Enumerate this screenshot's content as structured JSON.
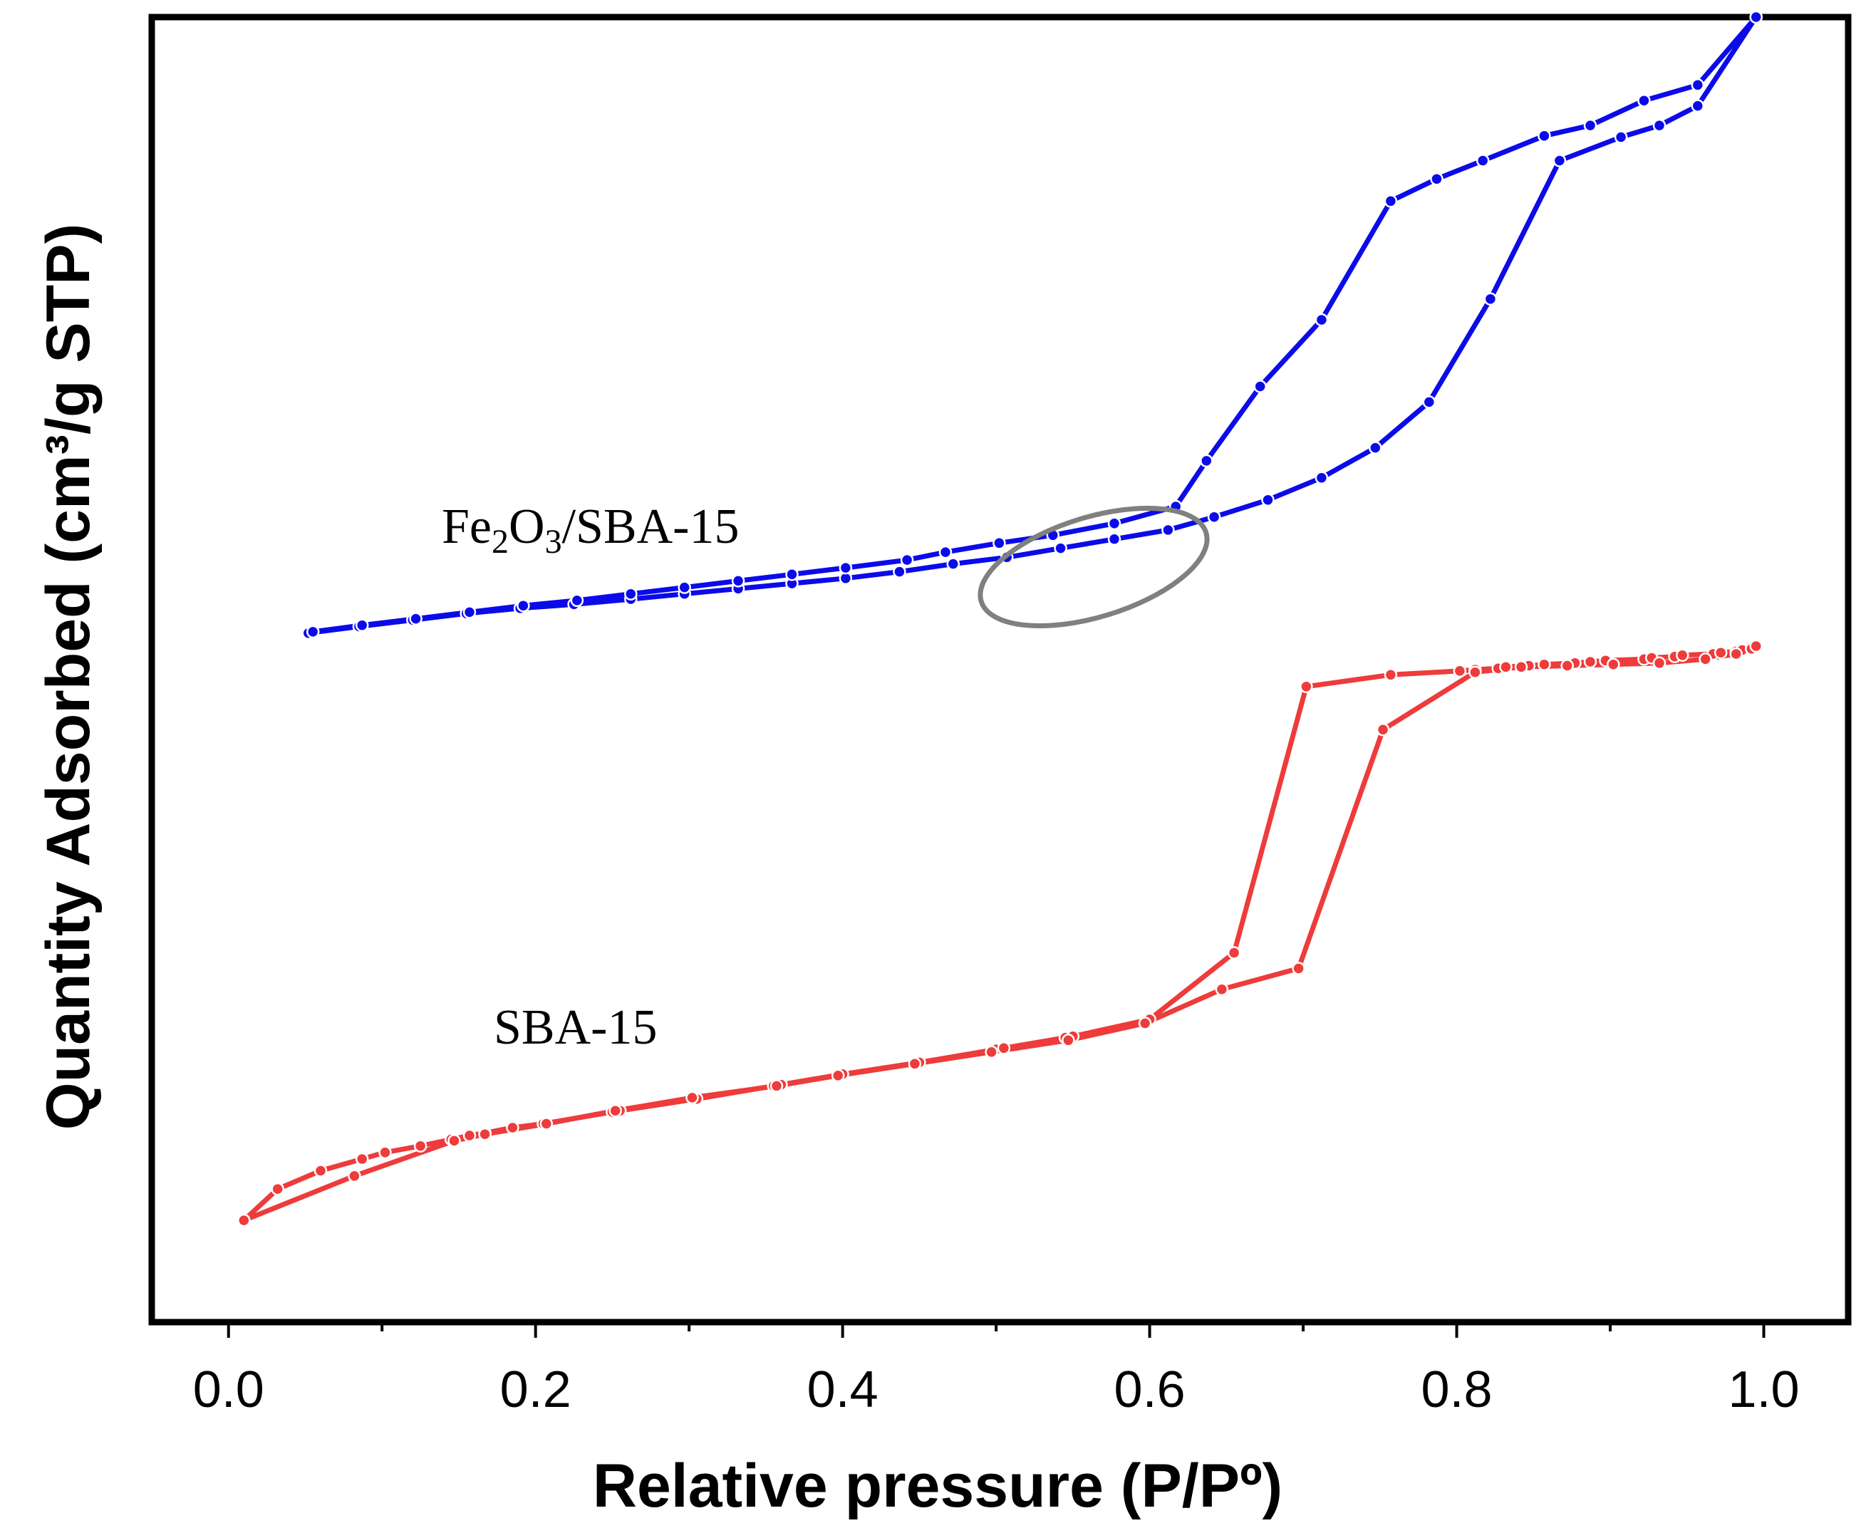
{
  "chart_data": {
    "type": "line",
    "title": "",
    "xlabel": "Relative pressure (P/Pº)",
    "ylabel": "Quantity Adsorbed (cm³/g STP)",
    "xlim": [
      -0.05,
      1.055
    ],
    "ylim": [
      0,
      1000
    ],
    "x_ticks": [
      "0.0",
      "0.2",
      "0.4",
      "0.6",
      "0.8",
      "1.0"
    ],
    "y_ticks_shown": false,
    "grid": false,
    "series": [
      {
        "name": "Fe2O3/SBA-15",
        "color": "#0b0bea",
        "adsorption": {
          "x": [
            0.052,
            0.085,
            0.12,
            0.155,
            0.19,
            0.225,
            0.262,
            0.297,
            0.332,
            0.367,
            0.402,
            0.437,
            0.472,
            0.507,
            0.542,
            0.577,
            0.612,
            0.642,
            0.677,
            0.712,
            0.747,
            0.782,
            0.822,
            0.867,
            0.907,
            0.932,
            0.957,
            0.995
          ],
          "y": [
            528,
            533,
            538,
            543,
            547,
            550,
            554,
            558,
            562,
            566,
            570,
            575,
            581,
            586,
            593,
            600,
            607,
            617,
            630,
            647,
            670,
            705,
            784,
            890,
            908,
            917,
            932,
            1000
          ]
        },
        "desorption": {
          "x": [
            0.995,
            0.957,
            0.922,
            0.887,
            0.857,
            0.817,
            0.787,
            0.757,
            0.712,
            0.672,
            0.637,
            0.617,
            0.577,
            0.537,
            0.502,
            0.467,
            0.442,
            0.402,
            0.367,
            0.332,
            0.297,
            0.262,
            0.227,
            0.192,
            0.157,
            0.122,
            0.087,
            0.055
          ],
          "y": [
            1000,
            948,
            936,
            917,
            909,
            890,
            876,
            859,
            768,
            717,
            660,
            625,
            612,
            603,
            597,
            590,
            584,
            578,
            573,
            568,
            563,
            558,
            553,
            549,
            544,
            539,
            534,
            529
          ]
        },
        "label": {
          "base": "Fe",
          "sub1": "2",
          "mid": "O",
          "sub2": "3",
          "rest": "/SBA-15"
        }
      },
      {
        "name": "SBA-15",
        "color": "#ee3b3b",
        "adsorption": {
          "x": [
            0.01,
            0.032,
            0.06,
            0.087,
            0.102,
            0.125,
            0.145,
            0.157,
            0.167,
            0.185,
            0.205,
            0.25,
            0.255,
            0.305,
            0.355,
            0.36,
            0.4,
            0.45,
            0.5,
            0.505,
            0.545,
            0.55,
            0.6,
            0.655,
            0.702,
            0.757,
            0.802,
            0.812,
            0.827,
            0.832,
            0.847,
            0.857,
            0.877,
            0.887,
            0.897,
            0.922,
            0.927,
            0.942,
            0.947,
            0.967,
            0.972,
            0.982,
            0.986,
            0.992,
            0.995
          ],
          "y": [
            78,
            102,
            116,
            125,
            130,
            135,
            140,
            143,
            145,
            149,
            152,
            161,
            162,
            171,
            181,
            182,
            190,
            199,
            209,
            210,
            218,
            219,
            232,
            283,
            487,
            496,
            499,
            500,
            501,
            502,
            503,
            504,
            505,
            506,
            507,
            508,
            509,
            510,
            511,
            512,
            513,
            514,
            515,
            516,
            518
          ]
        },
        "desorption": {
          "x": [
            0.995,
            0.982,
            0.962,
            0.932,
            0.902,
            0.872,
            0.842,
            0.812,
            0.752,
            0.697,
            0.647,
            0.597,
            0.547,
            0.497,
            0.447,
            0.397,
            0.357,
            0.302,
            0.252,
            0.207,
            0.167,
            0.147,
            0.082,
            0.01
          ],
          "y": [
            518,
            512,
            508,
            505,
            504,
            503,
            502,
            498,
            454,
            271,
            255,
            229,
            216,
            207,
            198,
            189,
            181,
            172,
            162,
            152,
            144,
            139,
            112,
            78
          ]
        },
        "label": {
          "text": "SBA-15"
        }
      }
    ],
    "annotations": [
      {
        "type": "ellipse",
        "color": "#808080",
        "center_x": 0.595,
        "center_y": 610,
        "note": "highlighted region near P/Pº 0.5-0.65 on Fe2O3/SBA-15 curve"
      }
    ]
  }
}
